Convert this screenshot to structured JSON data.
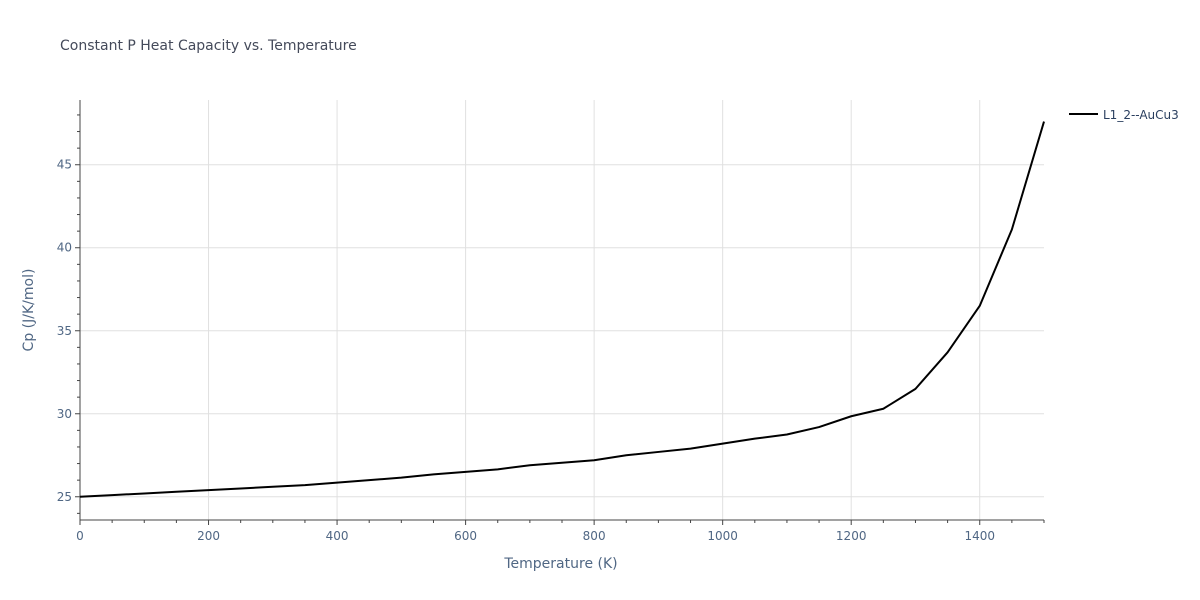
{
  "chart_data": {
    "type": "line",
    "title": "Constant P Heat Capacity vs. Temperature",
    "xlabel": "Temperature (K)",
    "ylabel": "Cp (J/K/mol)",
    "xlim": [
      0,
      1500
    ],
    "ylim": [
      23.6,
      48.9
    ],
    "xticks": [
      0,
      200,
      400,
      600,
      800,
      1000,
      1200,
      1400
    ],
    "yticks": [
      25,
      30,
      35,
      40,
      45
    ],
    "grid": true,
    "legend_position": "top-right",
    "series": [
      {
        "name": "L1_2--AuCu3",
        "color": "#000000",
        "x": [
          0,
          50,
          100,
          150,
          200,
          250,
          300,
          350,
          400,
          450,
          500,
          550,
          600,
          650,
          700,
          750,
          800,
          850,
          900,
          950,
          1000,
          1050,
          1100,
          1150,
          1200,
          1250,
          1300,
          1350,
          1400,
          1450,
          1500
        ],
        "y": [
          25.0,
          25.1,
          25.2,
          25.3,
          25.4,
          25.5,
          25.6,
          25.7,
          25.85,
          26.0,
          26.15,
          26.35,
          26.5,
          26.65,
          26.9,
          27.05,
          27.2,
          27.5,
          27.7,
          27.9,
          28.2,
          28.5,
          28.75,
          29.2,
          29.85,
          30.3,
          31.5,
          33.7,
          36.5,
          41.1,
          47.6
        ]
      }
    ]
  }
}
